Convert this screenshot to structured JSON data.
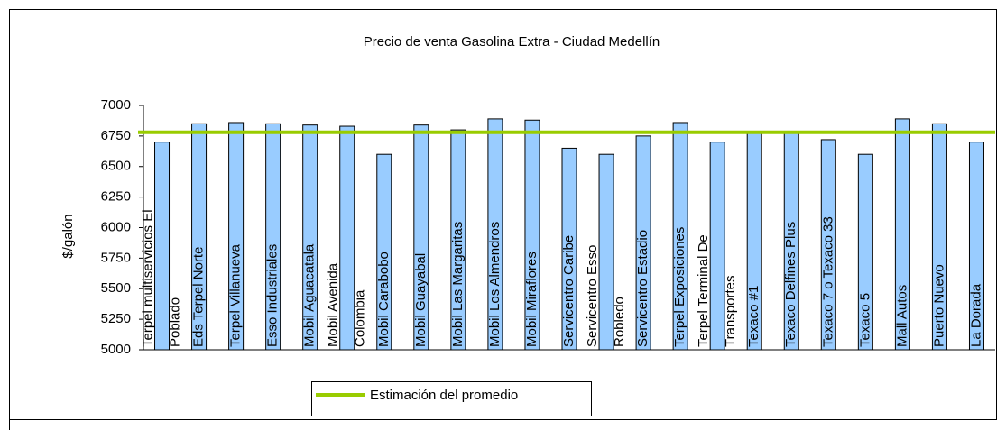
{
  "chart_data": {
    "type": "bar",
    "title": "Precio de venta Gasolina Extra - Ciudad Medellín",
    "y_label": "$/galón",
    "categories": [
      "Terpel multiservicios El\nPoblado",
      "Eds Terpel Norte",
      "Terpel Villanueva",
      "Esso Industriales",
      "Mobil Aguacatala",
      "Mobil Avenida\nColombia",
      "Mobil Carabobo",
      "Mobil Guayabal",
      "Mobil Las Margaritas",
      "Mobil  Los Almendros",
      "Mobil Miraflores",
      "Servicentro Caribe",
      "Servicentro Esso\nRobledo",
      "Servicentro Estadio",
      "Terpel Exposiciones",
      "Terpel Terminal De\nTransportes",
      "Texaco #1",
      "Texaco Delfines Plus",
      "Texaco  7 o Texaco 33",
      "Texaco 5",
      "Mall Autos",
      "Puerto Nuevo",
      "La Dorada"
    ],
    "values": [
      6700,
      6850,
      6860,
      6850,
      6840,
      6830,
      6600,
      6840,
      6800,
      6890,
      6880,
      6650,
      6600,
      6750,
      6860,
      6700,
      6780,
      6780,
      6720,
      6600,
      6890,
      6850,
      6700
    ],
    "color": "#99ccff",
    "average": {
      "name": "Estimación del promedio",
      "value": 6780,
      "color": "#99cc00"
    },
    "ylim": [
      5000,
      7000
    ],
    "yticks": [
      5000,
      5250,
      5500,
      5750,
      6000,
      6250,
      6500,
      6750,
      7000
    ]
  }
}
